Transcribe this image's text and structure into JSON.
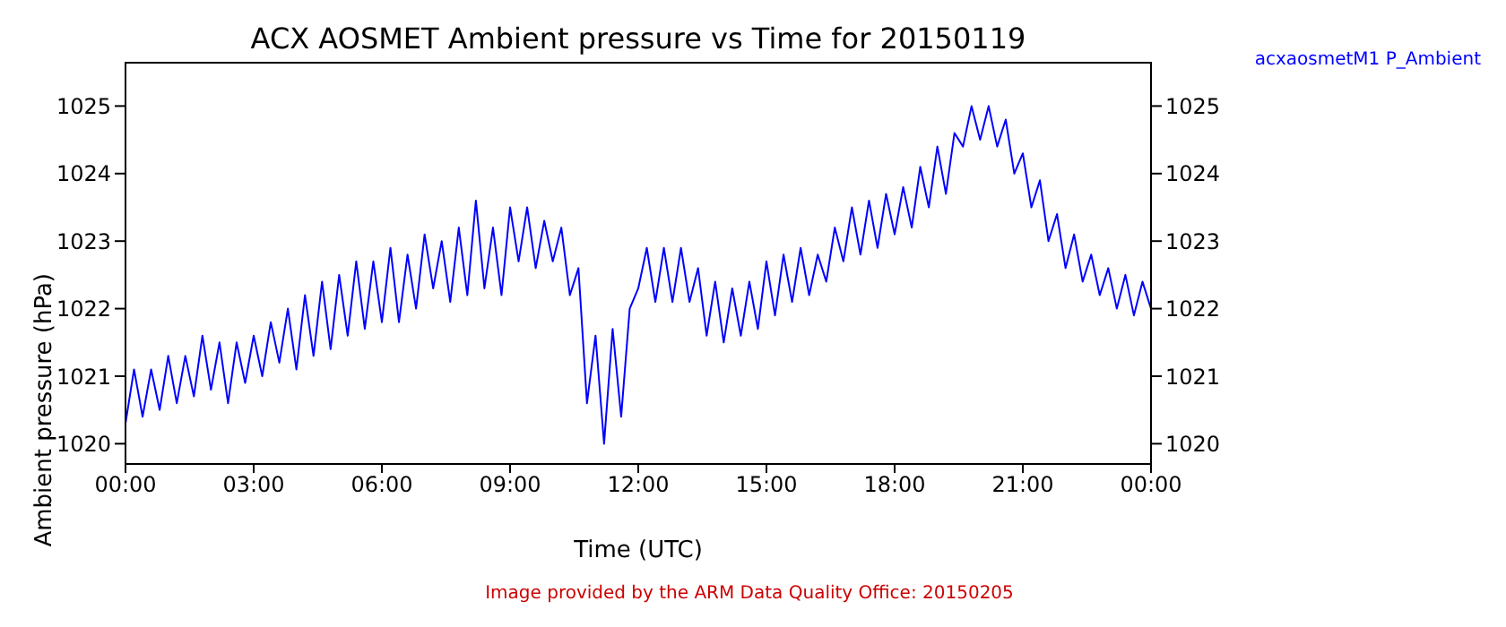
{
  "chart_data": {
    "type": "line",
    "title": "ACX AOSMET Ambient pressure vs Time for 20150119",
    "xlabel": "Time (UTC)",
    "ylabel": "Ambient pressure (hPa)",
    "annotations": [
      "Image provided by the ARM Data Quality Office: 20150205"
    ],
    "x": [
      0,
      0.2,
      0.4,
      0.6,
      0.8,
      1,
      1.2,
      1.4,
      1.6,
      1.8,
      2,
      2.2,
      2.4,
      2.6,
      2.8,
      3,
      3.2,
      3.4,
      3.6,
      3.8,
      4,
      4.2,
      4.4,
      4.6,
      4.8,
      5,
      5.2,
      5.4,
      5.6,
      5.8,
      6,
      6.2,
      6.4,
      6.6,
      6.8,
      7,
      7.2,
      7.4,
      7.6,
      7.8,
      8,
      8.2,
      8.4,
      8.6,
      8.8,
      9,
      9.2,
      9.4,
      9.6,
      9.8,
      10,
      10.2,
      10.4,
      10.6,
      10.8,
      11,
      11.2,
      11.4,
      11.6,
      11.8,
      12,
      12.2,
      12.4,
      12.6,
      12.8,
      13,
      13.2,
      13.4,
      13.6,
      13.8,
      14,
      14.2,
      14.4,
      14.6,
      14.8,
      15,
      15.2,
      15.4,
      15.6,
      15.8,
      16,
      16.2,
      16.4,
      16.6,
      16.8,
      17,
      17.2,
      17.4,
      17.6,
      17.8,
      18,
      18.2,
      18.4,
      18.6,
      18.8,
      19,
      19.2,
      19.4,
      19.6,
      19.8,
      20,
      20.2,
      20.4,
      20.6,
      20.8,
      21,
      21.2,
      21.4,
      21.6,
      21.8,
      22,
      22.2,
      22.4,
      22.6,
      22.8,
      23,
      23.2,
      23.4,
      23.6,
      23.8,
      24
    ],
    "series": [
      {
        "name": "acxaosmetM1 P_Ambient",
        "color": "#0000ff",
        "values": [
          1020.3,
          1021.1,
          1020.4,
          1021.1,
          1020.5,
          1021.3,
          1020.6,
          1021.3,
          1020.7,
          1021.6,
          1020.8,
          1021.5,
          1020.6,
          1021.5,
          1020.9,
          1021.6,
          1021.0,
          1021.8,
          1021.2,
          1022.0,
          1021.1,
          1022.2,
          1021.3,
          1022.4,
          1021.4,
          1022.5,
          1021.6,
          1022.7,
          1021.7,
          1022.7,
          1021.8,
          1022.9,
          1021.8,
          1022.8,
          1022.0,
          1023.1,
          1022.3,
          1023.0,
          1022.1,
          1023.2,
          1022.2,
          1023.6,
          1022.3,
          1023.2,
          1022.2,
          1023.5,
          1022.7,
          1023.5,
          1022.6,
          1023.3,
          1022.7,
          1023.2,
          1022.2,
          1022.6,
          1020.6,
          1021.6,
          1020.0,
          1021.7,
          1020.4,
          1022.0,
          1022.3,
          1022.9,
          1022.1,
          1022.9,
          1022.1,
          1022.9,
          1022.1,
          1022.6,
          1021.6,
          1022.4,
          1021.5,
          1022.3,
          1021.6,
          1022.4,
          1021.7,
          1022.7,
          1021.9,
          1022.8,
          1022.1,
          1022.9,
          1022.2,
          1022.8,
          1022.4,
          1023.2,
          1022.7,
          1023.5,
          1022.8,
          1023.6,
          1022.9,
          1023.7,
          1023.1,
          1023.8,
          1023.2,
          1024.1,
          1023.5,
          1024.4,
          1023.7,
          1024.6,
          1024.4,
          1025.0,
          1024.5,
          1025.0,
          1024.4,
          1024.8,
          1024.0,
          1024.3,
          1023.5,
          1023.9,
          1023.0,
          1023.4,
          1022.6,
          1023.1,
          1022.4,
          1022.8,
          1022.2,
          1022.6,
          1022.0,
          1022.5,
          1021.9,
          1022.4,
          1022.0
        ]
      }
    ],
    "xlim": [
      0,
      24
    ],
    "xticks": [
      {
        "value": 0,
        "label": "00:00"
      },
      {
        "value": 3,
        "label": "03:00"
      },
      {
        "value": 6,
        "label": "06:00"
      },
      {
        "value": 9,
        "label": "09:00"
      },
      {
        "value": 12,
        "label": "12:00"
      },
      {
        "value": 15,
        "label": "15:00"
      },
      {
        "value": 18,
        "label": "18:00"
      },
      {
        "value": 21,
        "label": "21:00"
      },
      {
        "value": 24,
        "label": "00:00"
      }
    ],
    "ylim": [
      1019.7,
      1025.35
    ],
    "yticks": [
      1020,
      1021,
      1022,
      1023,
      1024,
      1025
    ],
    "y2lim": [
      1019.7,
      1025.35
    ],
    "y2ticks": [
      1020,
      1021,
      1022,
      1023,
      1024,
      1025
    ],
    "legend": "top right",
    "grid": false
  }
}
